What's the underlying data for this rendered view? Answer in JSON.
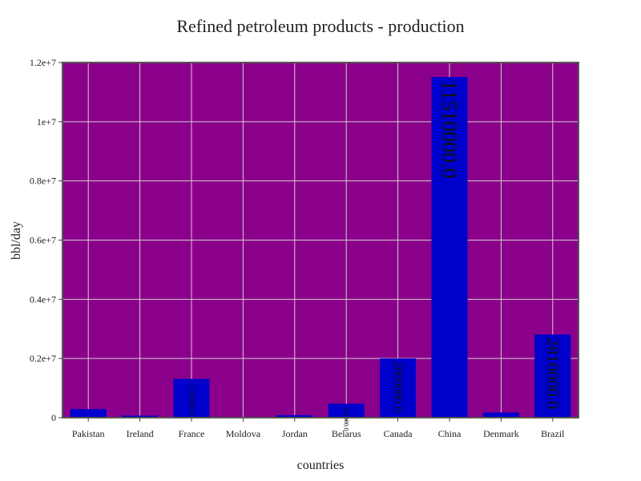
{
  "chart_data": {
    "type": "bar",
    "title": "Refined petroleum products - production",
    "xlabel": "countries",
    "ylabel": "bbl/day",
    "categories": [
      "Pakistan",
      "Ireland",
      "France",
      "Moldova",
      "Jordan",
      "Belarus",
      "Canada",
      "China",
      "Denmark",
      "Brazil"
    ],
    "values": [
      290000,
      68000,
      1310000,
      0,
      84000,
      471000,
      2000000,
      11510000,
      175000,
      2810000
    ],
    "data_labels": [
      "",
      "",
      "1310000.0",
      "",
      "",
      "471000.0",
      "2000000.0",
      "11510000.0",
      "",
      "2810000.0"
    ],
    "ylim": [
      0,
      12000000
    ],
    "yticks": [
      0,
      2000000,
      4000000,
      6000000,
      8000000,
      10000000,
      12000000
    ],
    "ytick_labels": [
      "0",
      "0.2e+7",
      "0.4e+7",
      "0.6e+7",
      "0.8e+7",
      "1e+7",
      "1.2e+7"
    ],
    "grid": true,
    "colors": {
      "plot_background": "#8b008b",
      "bar": "#0000cd",
      "grid": "#cfcfcf",
      "frame": "#555555",
      "text": "#222222"
    }
  }
}
